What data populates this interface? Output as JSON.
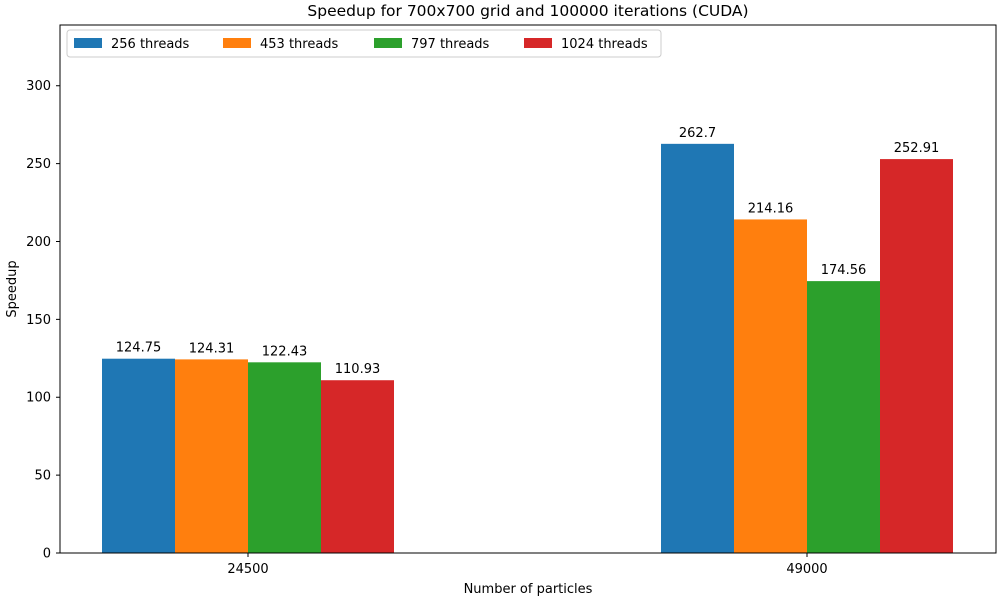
{
  "chart_data": {
    "type": "bar",
    "title": "Speedup for 700x700 grid and 100000 iterations (CUDA)",
    "xlabel": "Number of particles",
    "ylabel": "Speedup",
    "categories": [
      "24500",
      "49000"
    ],
    "ylim": [
      0,
      339
    ],
    "yticks": [
      0,
      50,
      100,
      150,
      200,
      250,
      300
    ],
    "grid": false,
    "legend": "top-left",
    "series": [
      {
        "name": "256 threads",
        "color": "#1f77b4",
        "values": [
          124.75,
          262.7
        ],
        "labels": [
          "124.75",
          "262.7"
        ]
      },
      {
        "name": "453 threads",
        "color": "#ff7f0e",
        "values": [
          124.31,
          214.16
        ],
        "labels": [
          "124.31",
          "214.16"
        ]
      },
      {
        "name": "797 threads",
        "color": "#2ca02c",
        "values": [
          122.43,
          174.56
        ],
        "labels": [
          "122.43",
          "174.56"
        ]
      },
      {
        "name": "1024 threads",
        "color": "#d62728",
        "values": [
          110.93,
          252.91
        ],
        "labels": [
          "110.93",
          "252.91"
        ]
      }
    ]
  }
}
